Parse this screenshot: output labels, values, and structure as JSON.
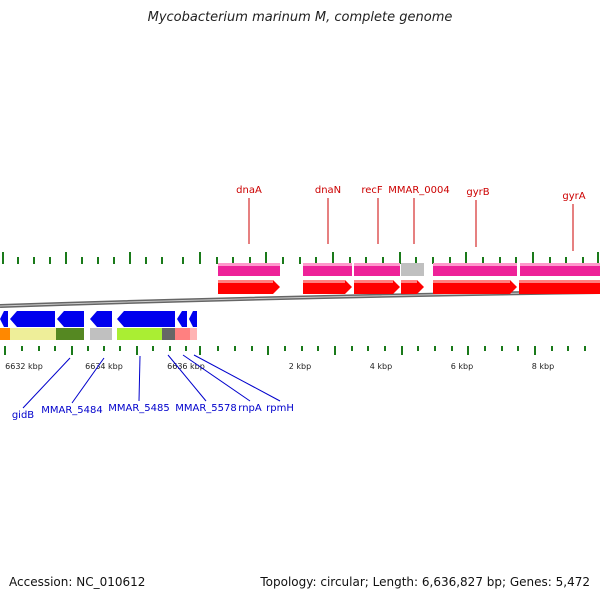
{
  "title": "Mycobacterium marinum M, complete genome",
  "footer": {
    "accession": "Accession: NC_010612",
    "summary": "Topology: circular; Length: 6,636,827 bp; Genes: 5,472"
  },
  "scale_labels": [
    "6632 kbp",
    "6634 kbp",
    "6636 kbp",
    "2 kbp",
    "4 kbp",
    "6 kbp",
    "8 kbp"
  ],
  "genes_forward": [
    "dnaA",
    "dnaN",
    "recF",
    "MMAR_0004",
    "gyrB",
    "gyrA"
  ],
  "genes_reverse": [
    "gidB",
    "MMAR_5484",
    "MMAR_5485",
    "MMAR_5578",
    "rnpA",
    "rpmH"
  ],
  "colors": {
    "forward_label": "#cc0000",
    "reverse_label": "#0000cc",
    "forward_cds": "#ff0000",
    "forward_gene": "#ee2299",
    "reverse_cds": "#0000ee",
    "tick": "#1a7a1a",
    "backbone": "#777777"
  }
}
